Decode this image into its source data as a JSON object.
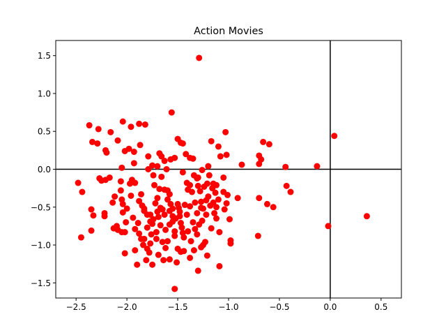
{
  "chart_data": {
    "type": "scatter",
    "title": "Action Movies",
    "xlabel": "",
    "ylabel": "",
    "xlim": [
      -2.7,
      0.7
    ],
    "ylim": [
      -1.7,
      1.7
    ],
    "xticks": [
      -2.5,
      -2.0,
      -1.5,
      -1.0,
      -0.5,
      0.0,
      0.5
    ],
    "xtick_labels": [
      "−2.5",
      "−2.0",
      "−1.5",
      "−1.0",
      "−0.5",
      "0.0",
      "0.5"
    ],
    "yticks": [
      -1.5,
      -1.0,
      -0.5,
      0.0,
      0.5,
      1.0,
      1.5
    ],
    "ytick_labels": [
      "−1.5",
      "−1.0",
      "−0.5",
      "0.0",
      "0.5",
      "1.0",
      "1.5"
    ],
    "grid": false,
    "reference_lines": {
      "x": 0.0,
      "y": 0.0,
      "color": "#000000"
    },
    "marker_color": "#ff0000",
    "points": [
      [
        -1.29,
        1.47
      ],
      [
        0.04,
        0.44
      ],
      [
        0.36,
        -0.62
      ],
      [
        -0.02,
        -0.75
      ],
      [
        -1.56,
        0.75
      ],
      [
        -2.37,
        0.58
      ],
      [
        -2.28,
        0.53
      ],
      [
        -2.16,
        0.49
      ],
      [
        -2.04,
        0.63
      ],
      [
        -1.96,
        0.56
      ],
      [
        -1.88,
        0.6
      ],
      [
        -1.82,
        0.59
      ],
      [
        -2.34,
        0.36
      ],
      [
        -2.29,
        0.34
      ],
      [
        -2.21,
        0.25
      ],
      [
        -2.2,
        0.22
      ],
      [
        -2.09,
        0.38
      ],
      [
        -2.02,
        0.24
      ],
      [
        -1.98,
        0.27
      ],
      [
        -1.93,
        0.23
      ],
      [
        -1.87,
        0.32
      ],
      [
        -1.79,
        0.17
      ],
      [
        -1.75,
        0.05
      ],
      [
        -1.68,
        0.21
      ],
      [
        -1.66,
        0.17
      ],
      [
        -1.63,
        0.11
      ],
      [
        -1.57,
        0.13
      ],
      [
        -1.53,
        0.15
      ],
      [
        -1.5,
        0.4
      ],
      [
        -1.47,
        0.35
      ],
      [
        -1.45,
        0.34
      ],
      [
        -1.42,
        0.2
      ],
      [
        -1.38,
        0.15
      ],
      [
        -1.35,
        0.14
      ],
      [
        -1.17,
        0.37
      ],
      [
        -1.1,
        0.3
      ],
      [
        -1.03,
        0.49
      ],
      [
        -1.02,
        0.19
      ],
      [
        -1.08,
        0.17
      ],
      [
        -0.87,
        0.06
      ],
      [
        -0.7,
        0.18
      ],
      [
        -0.68,
        0.13
      ],
      [
        -0.66,
        0.36
      ],
      [
        -0.6,
        0.33
      ],
      [
        -0.44,
        0.03
      ],
      [
        -0.13,
        0.04
      ],
      [
        -0.7,
        0.07
      ],
      [
        -1.2,
        0.04
      ],
      [
        -2.05,
        0.02
      ],
      [
        -1.93,
        0.08
      ],
      [
        -1.7,
        0.04
      ],
      [
        -1.61,
        0.0
      ],
      [
        -2.48,
        -0.18
      ],
      [
        -2.44,
        -0.3
      ],
      [
        -2.35,
        -0.53
      ],
      [
        -2.33,
        -0.61
      ],
      [
        -2.35,
        -0.81
      ],
      [
        -2.45,
        -0.9
      ],
      [
        -2.27,
        -0.12
      ],
      [
        -2.25,
        -0.15
      ],
      [
        -2.21,
        -0.14
      ],
      [
        -2.17,
        -0.11
      ],
      [
        -2.06,
        -0.16
      ],
      [
        -2.06,
        -0.28
      ],
      [
        -2.05,
        -0.4
      ],
      [
        -2.04,
        -0.46
      ],
      [
        -2.04,
        -0.57
      ],
      [
        -2.01,
        -0.7
      ],
      [
        -2.0,
        -0.52
      ],
      [
        -1.97,
        -0.19
      ],
      [
        -1.95,
        -0.14
      ],
      [
        -1.92,
        -0.18
      ],
      [
        -1.88,
        -0.42
      ],
      [
        -1.86,
        -0.33
      ],
      [
        -1.83,
        -0.52
      ],
      [
        -1.8,
        -0.6
      ],
      [
        -2.22,
        -0.58
      ],
      [
        -2.22,
        -0.62
      ],
      [
        -2.13,
        -0.78
      ],
      [
        -2.1,
        -0.75
      ],
      [
        -2.09,
        -0.8
      ],
      [
        -2.05,
        -0.83
      ],
      [
        -2.02,
        -0.83
      ],
      [
        -2.02,
        -1.11
      ],
      [
        -1.92,
        -1.07
      ],
      [
        -1.9,
        -1.26
      ],
      [
        -1.83,
        -0.92
      ],
      [
        -1.8,
        -1.05
      ],
      [
        -1.78,
        -1.1
      ],
      [
        -1.77,
        -0.98
      ],
      [
        -1.81,
        -1.2
      ],
      [
        -1.75,
        -1.26
      ],
      [
        -1.77,
        -0.6
      ],
      [
        -1.75,
        -0.72
      ],
      [
        -1.74,
        -0.66
      ],
      [
        -1.72,
        -0.45
      ],
      [
        -1.7,
        -0.38
      ],
      [
        -1.7,
        -0.56
      ],
      [
        -1.68,
        -0.26
      ],
      [
        -1.67,
        -0.74
      ],
      [
        -1.65,
        -0.53
      ],
      [
        -1.63,
        -0.6
      ],
      [
        -1.62,
        -0.8
      ],
      [
        -1.6,
        -0.95
      ],
      [
        -1.65,
        -0.96
      ],
      [
        -1.62,
        -1.04
      ],
      [
        -1.64,
        -1.2
      ],
      [
        -1.58,
        -1.19
      ],
      [
        -1.6,
        -0.28
      ],
      [
        -1.58,
        -0.33
      ],
      [
        -1.57,
        -0.46
      ],
      [
        -1.55,
        -0.69
      ],
      [
        -1.53,
        -0.82
      ],
      [
        -1.53,
        -0.88
      ],
      [
        -1.52,
        -0.65
      ],
      [
        -1.5,
        -0.46
      ],
      [
        -1.49,
        -0.51
      ],
      [
        -1.48,
        -0.62
      ],
      [
        -1.47,
        -0.71
      ],
      [
        -1.45,
        -0.84
      ],
      [
        -1.44,
        -0.9
      ],
      [
        -1.5,
        -1.05
      ],
      [
        -1.47,
        -1.09
      ],
      [
        -1.44,
        -1.08
      ],
      [
        -1.51,
        -1.23
      ],
      [
        -1.38,
        -1.17
      ],
      [
        -1.3,
        -1.34
      ],
      [
        -1.53,
        -1.58
      ],
      [
        -1.41,
        -0.18
      ],
      [
        -1.38,
        -0.21
      ],
      [
        -1.36,
        -0.3
      ],
      [
        -1.33,
        -0.44
      ],
      [
        -1.31,
        -0.58
      ],
      [
        -1.3,
        -0.22
      ],
      [
        -1.28,
        -0.29
      ],
      [
        -1.27,
        -0.51
      ],
      [
        -1.25,
        -0.52
      ],
      [
        -1.22,
        -0.6
      ],
      [
        -1.23,
        -0.96
      ],
      [
        -1.25,
        -1.0
      ],
      [
        -1.27,
        -1.03
      ],
      [
        -1.21,
        -1.14
      ],
      [
        -1.18,
        -0.48
      ],
      [
        -1.15,
        -0.44
      ],
      [
        -1.12,
        -0.65
      ],
      [
        -1.09,
        -0.83
      ],
      [
        -1.09,
        -1.28
      ],
      [
        -1.05,
        -0.3
      ],
      [
        -1.04,
        -0.53
      ],
      [
        -1.02,
        -0.45
      ],
      [
        -1.01,
        -0.34
      ],
      [
        -0.99,
        -0.66
      ],
      [
        -0.98,
        -0.94
      ],
      [
        -0.98,
        -0.98
      ],
      [
        -0.91,
        -0.38
      ],
      [
        -0.7,
        -0.38
      ],
      [
        -0.71,
        -0.88
      ],
      [
        -0.62,
        -0.46
      ],
      [
        -0.56,
        -0.5
      ],
      [
        -0.43,
        -0.22
      ],
      [
        -0.39,
        -0.3
      ],
      [
        -1.79,
        0.0
      ],
      [
        -1.74,
        -0.08
      ],
      [
        -1.73,
        -0.21
      ],
      [
        -1.66,
        -0.1
      ],
      [
        -1.63,
        -0.27
      ],
      [
        -1.45,
        -0.04
      ],
      [
        -1.4,
        -0.27
      ],
      [
        -1.34,
        -0.08
      ],
      [
        -1.3,
        -0.11
      ],
      [
        -1.26,
        -0.01
      ],
      [
        -1.19,
        -0.08
      ],
      [
        -1.15,
        -0.19
      ],
      [
        -1.12,
        -0.21
      ],
      [
        -1.05,
        -0.11
      ],
      [
        -1.85,
        -0.48
      ],
      [
        -1.92,
        -0.79
      ],
      [
        -1.88,
        -0.85
      ],
      [
        -1.83,
        -0.55
      ],
      [
        -1.8,
        -0.77
      ],
      [
        -1.77,
        -0.69
      ],
      [
        -1.71,
        -0.83
      ],
      [
        -1.69,
        -0.63
      ],
      [
        -1.67,
        -0.51
      ],
      [
        -1.6,
        -0.4
      ],
      [
        -1.58,
        -0.73
      ],
      [
        -1.55,
        -0.52
      ],
      [
        -1.43,
        -0.47
      ],
      [
        -1.41,
        -0.6
      ],
      [
        -1.38,
        -0.49
      ],
      [
        -1.35,
        -0.7
      ],
      [
        -1.33,
        -0.79
      ],
      [
        -1.31,
        -0.86
      ],
      [
        -1.29,
        -0.73
      ],
      [
        -1.26,
        -0.68
      ],
      [
        -1.22,
        -0.41
      ],
      [
        -1.2,
        -0.36
      ],
      [
        -1.17,
        -0.78
      ],
      [
        -1.14,
        -0.58
      ],
      [
        -1.12,
        -0.5
      ],
      [
        -2.14,
        -0.44
      ],
      [
        -2.12,
        -0.36
      ],
      [
        -1.96,
        -0.35
      ],
      [
        -1.94,
        -0.64
      ],
      [
        -1.89,
        -0.71
      ],
      [
        -1.86,
        -0.92
      ],
      [
        -1.84,
        -1.0
      ],
      [
        -1.76,
        -0.86
      ],
      [
        -1.71,
        -0.92
      ],
      [
        -1.69,
        -1.13
      ],
      [
        -1.58,
        -0.55
      ],
      [
        -1.55,
        -0.62
      ],
      [
        -1.48,
        -0.56
      ],
      [
        -1.46,
        -0.77
      ],
      [
        -1.4,
        -0.82
      ],
      [
        -1.37,
        -0.95
      ],
      [
        -1.34,
        -1.07
      ],
      [
        -1.31,
        -0.12
      ],
      [
        -1.27,
        -0.43
      ],
      [
        -1.24,
        -0.23
      ],
      [
        -1.21,
        -0.19
      ],
      [
        -1.16,
        -0.25
      ],
      [
        -1.13,
        -0.31
      ],
      [
        -1.1,
        -0.4
      ]
    ]
  }
}
